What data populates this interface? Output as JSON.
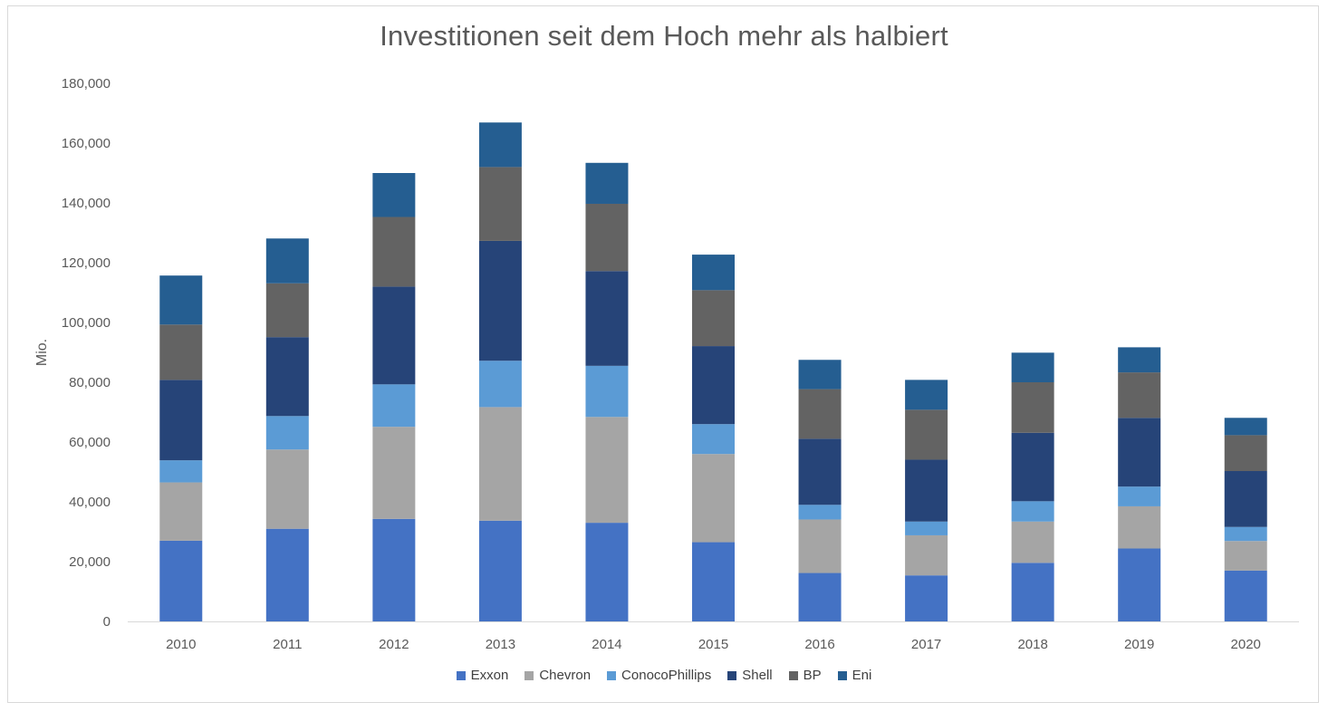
{
  "chart_data": {
    "type": "bar",
    "stacked": true,
    "title": "Investitionen seit dem Hoch mehr als halbiert",
    "ylabel": "Mio.",
    "xlabel": "",
    "ylim": [
      0,
      180000
    ],
    "yticks": [
      0,
      20000,
      40000,
      60000,
      80000,
      100000,
      120000,
      140000,
      160000,
      180000
    ],
    "ytick_labels": [
      "0",
      "20,000",
      "40,000",
      "60,000",
      "80,000",
      "100,000",
      "120,000",
      "140,000",
      "160,000",
      "180,000"
    ],
    "grid": false,
    "legend_position": "bottom",
    "categories": [
      "2010",
      "2011",
      "2012",
      "2013",
      "2014",
      "2015",
      "2016",
      "2017",
      "2018",
      "2019",
      "2020"
    ],
    "series": [
      {
        "name": "Exxon",
        "color": "#4472C4",
        "values": [
          27000,
          31000,
          34300,
          33700,
          33000,
          26500,
          16200,
          15400,
          19600,
          24400,
          17000
        ]
      },
      {
        "name": "Chevron",
        "color": "#A5A5A5",
        "values": [
          19500,
          26500,
          30800,
          38000,
          35400,
          29500,
          17900,
          13400,
          13800,
          14100,
          9900
        ]
      },
      {
        "name": "ConocoPhillips",
        "color": "#5B9BD5",
        "values": [
          7400,
          11200,
          14200,
          15500,
          17100,
          10000,
          4900,
          4600,
          6800,
          6600,
          4700
        ]
      },
      {
        "name": "Shell",
        "color": "#264478",
        "values": [
          26900,
          26400,
          32700,
          40100,
          31700,
          26100,
          22100,
          20700,
          22900,
          23000,
          18700
        ]
      },
      {
        "name": "BP",
        "color": "#636363",
        "values": [
          18500,
          18000,
          23300,
          24700,
          22500,
          18700,
          16600,
          16700,
          16900,
          15200,
          12000
        ]
      },
      {
        "name": "Eni",
        "color": "#255E91",
        "values": [
          16400,
          15000,
          14700,
          14900,
          13700,
          11900,
          9800,
          10000,
          9900,
          8400,
          5800
        ]
      }
    ]
  }
}
